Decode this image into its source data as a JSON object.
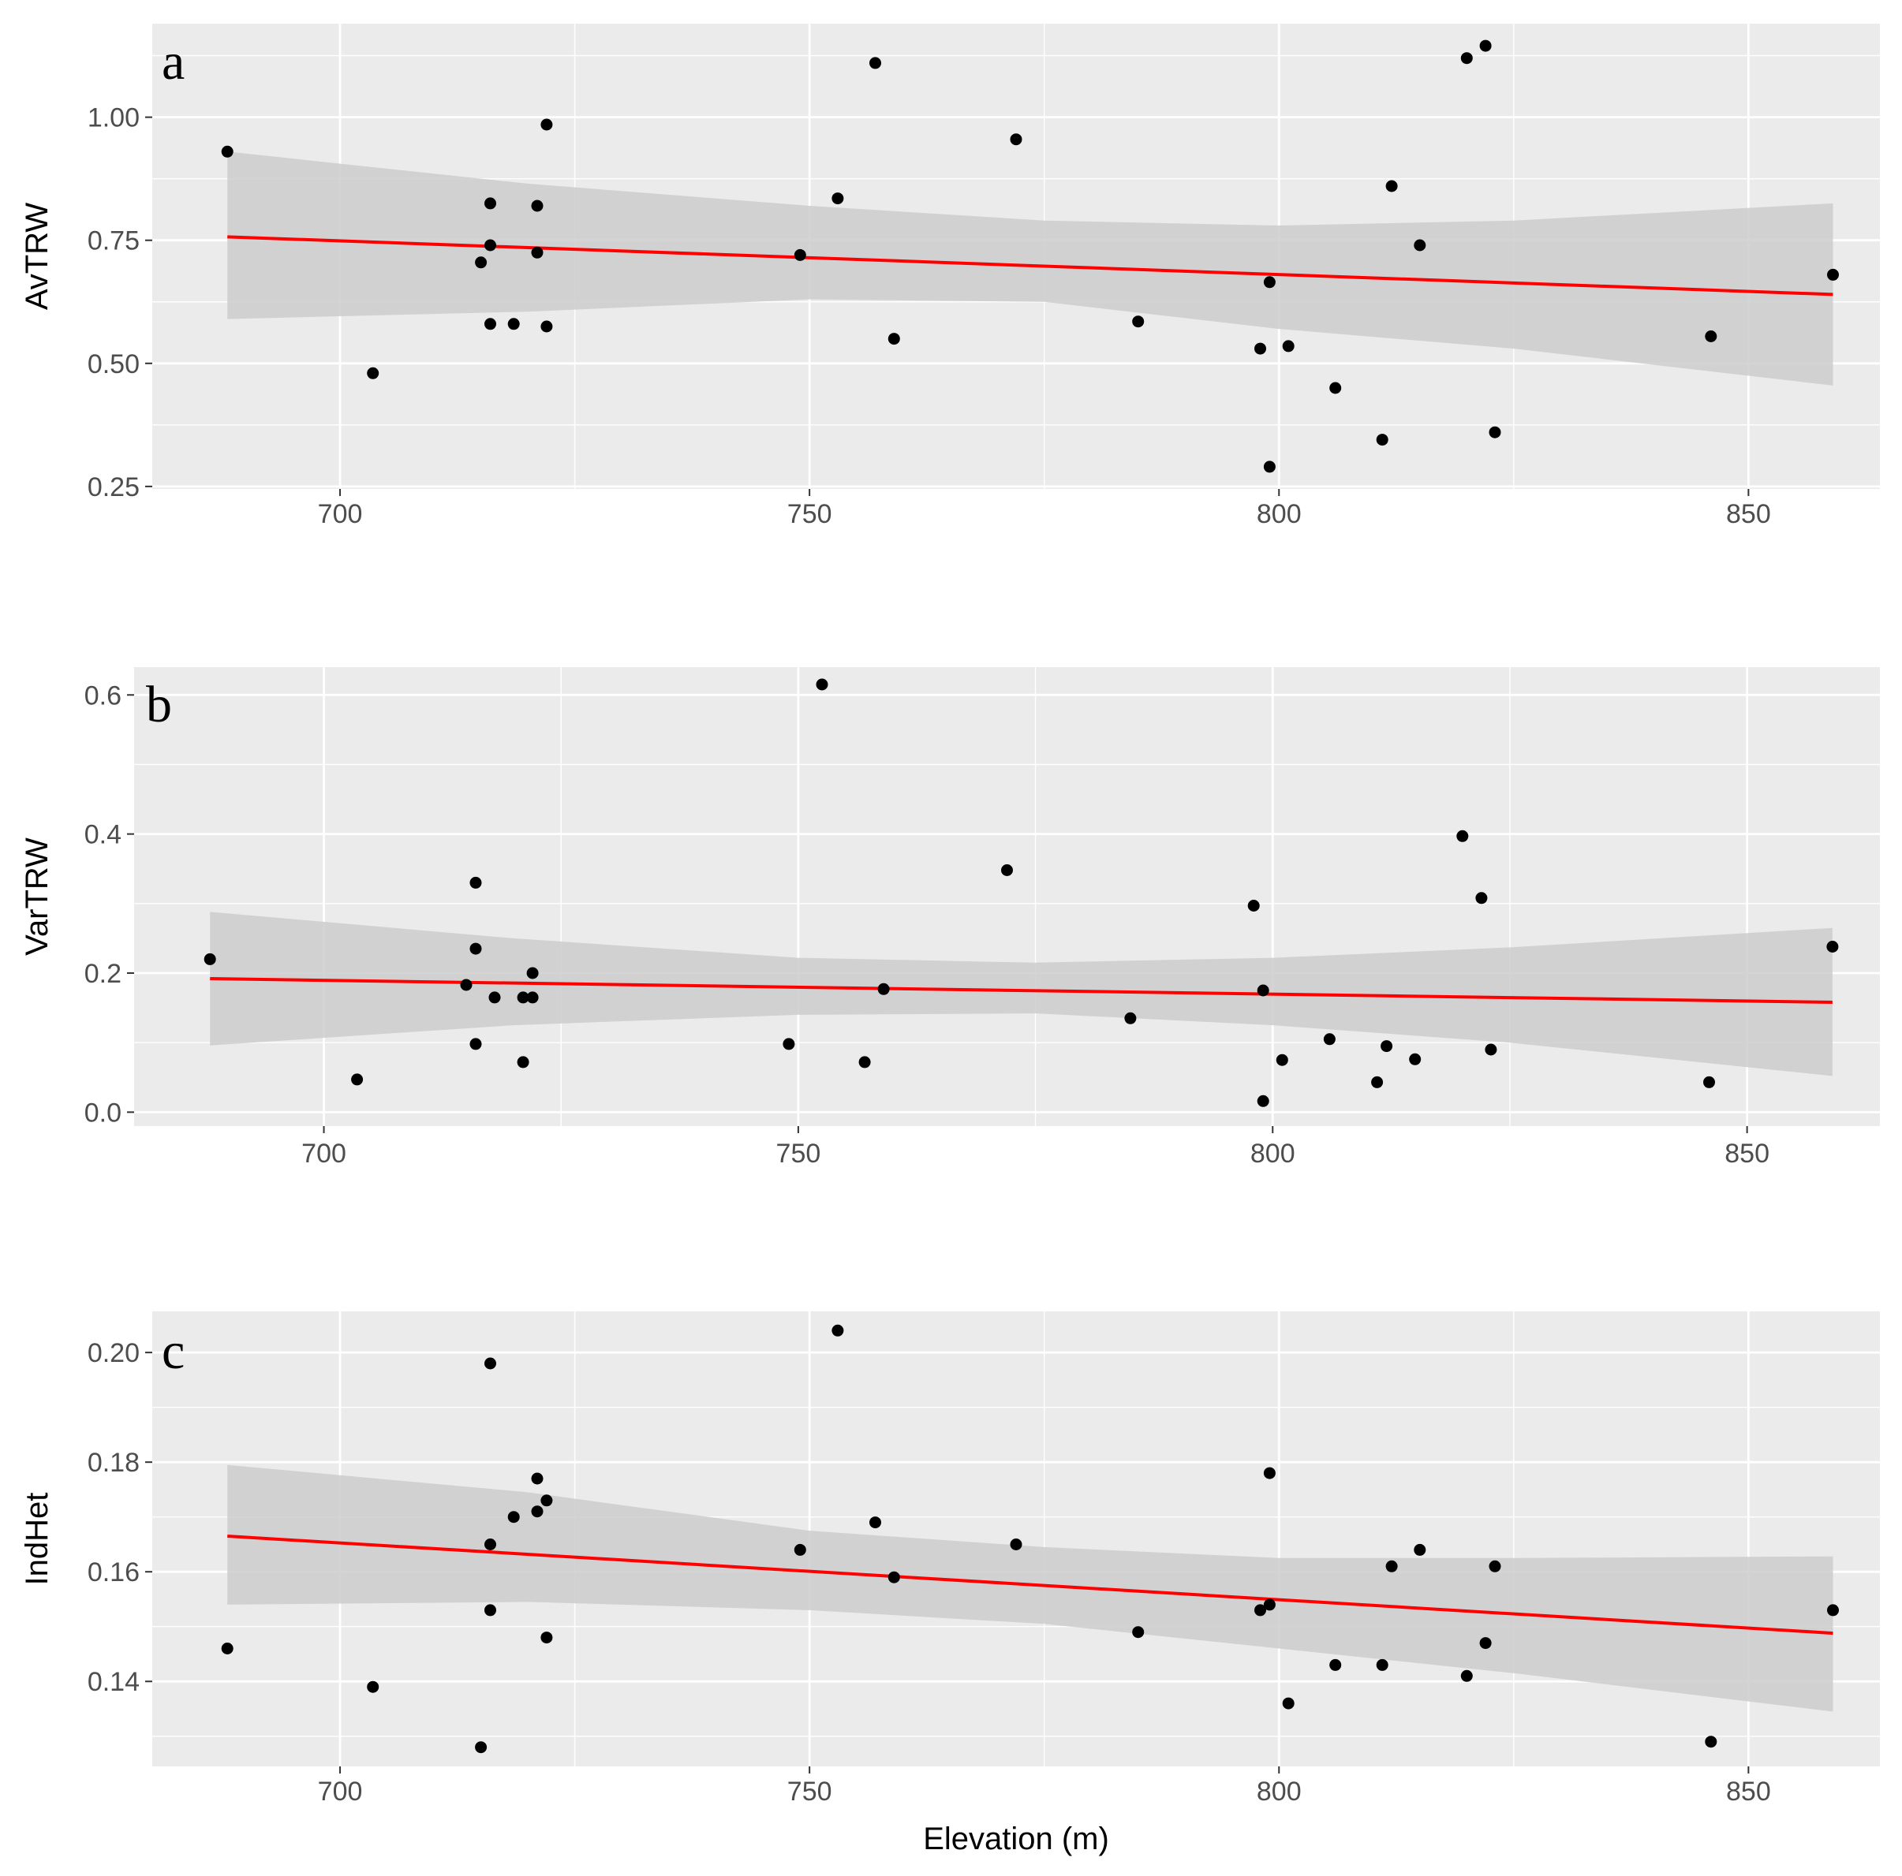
{
  "figure": {
    "background": "#ffffff",
    "panel_background": "#ebebeb",
    "grid_color": "#ffffff",
    "point_color": "#000000",
    "fit_color": "#ff0000",
    "band_color": "#cccccc"
  },
  "chart_data": [
    {
      "type": "scatter",
      "panel_label": "a",
      "ylabel": "AvTRW",
      "xlabel": "",
      "xlim": [
        680,
        864
      ],
      "ylim": [
        0.245,
        1.19
      ],
      "x_ticks": [
        700,
        750,
        800,
        850
      ],
      "x_tick_labels": [
        "700",
        "750",
        "800",
        "850"
      ],
      "y_ticks": [
        0.25,
        0.5,
        0.75,
        1.0
      ],
      "y_tick_labels": [
        "0.25",
        "0.50",
        "0.75",
        "1.00"
      ],
      "points": [
        [
          688,
          0.93
        ],
        [
          703.5,
          0.48
        ],
        [
          715,
          0.705
        ],
        [
          716,
          0.825
        ],
        [
          716,
          0.74
        ],
        [
          716,
          0.58
        ],
        [
          718.5,
          0.58
        ],
        [
          721,
          0.82
        ],
        [
          721,
          0.725
        ],
        [
          722,
          0.985
        ],
        [
          722,
          0.575
        ],
        [
          749,
          0.72
        ],
        [
          753,
          0.835
        ],
        [
          757,
          1.11
        ],
        [
          759,
          0.55
        ],
        [
          772,
          0.955
        ],
        [
          785,
          0.585
        ],
        [
          798,
          0.53
        ],
        [
          799,
          0.665
        ],
        [
          799,
          0.29
        ],
        [
          801,
          0.535
        ],
        [
          806,
          0.45
        ],
        [
          811,
          0.345
        ],
        [
          812,
          0.86
        ],
        [
          815,
          0.74
        ],
        [
          820,
          1.12
        ],
        [
          822,
          1.145
        ],
        [
          823,
          0.36
        ],
        [
          846,
          0.555
        ],
        [
          859,
          0.68
        ]
      ],
      "fit": {
        "x": [
          688,
          859
        ],
        "y": [
          0.757,
          0.64
        ]
      },
      "band": {
        "x": [
          688,
          720,
          750,
          775,
          800,
          825,
          859
        ],
        "lower": [
          0.59,
          0.605,
          0.63,
          0.625,
          0.57,
          0.53,
          0.455
        ],
        "upper": [
          0.93,
          0.865,
          0.82,
          0.79,
          0.78,
          0.79,
          0.825
        ]
      }
    },
    {
      "type": "scatter",
      "panel_label": "b",
      "ylabel": "VarTRW",
      "xlabel": "",
      "xlim": [
        680,
        864
      ],
      "ylim": [
        -0.02,
        0.64
      ],
      "x_ticks": [
        700,
        750,
        800,
        850
      ],
      "x_tick_labels": [
        "700",
        "750",
        "800",
        "850"
      ],
      "y_ticks": [
        0.0,
        0.2,
        0.4,
        0.6
      ],
      "y_tick_labels": [
        "0.0",
        "0.2",
        "0.4",
        "0.6"
      ],
      "points": [
        [
          688,
          0.22
        ],
        [
          703.5,
          0.047
        ],
        [
          715,
          0.183
        ],
        [
          716,
          0.33
        ],
        [
          716,
          0.235
        ],
        [
          716,
          0.098
        ],
        [
          718,
          0.165
        ],
        [
          721,
          0.165
        ],
        [
          721,
          0.072
        ],
        [
          722,
          0.165
        ],
        [
          722,
          0.2
        ],
        [
          749,
          0.098
        ],
        [
          752.5,
          0.615
        ],
        [
          757,
          0.072
        ],
        [
          759,
          0.177
        ],
        [
          772,
          0.348
        ],
        [
          785,
          0.135
        ],
        [
          798,
          0.297
        ],
        [
          799,
          0.175
        ],
        [
          799,
          0.016
        ],
        [
          801,
          0.075
        ],
        [
          806,
          0.105
        ],
        [
          811,
          0.043
        ],
        [
          812,
          0.095
        ],
        [
          815,
          0.076
        ],
        [
          820,
          0.397
        ],
        [
          822,
          0.308
        ],
        [
          823,
          0.09
        ],
        [
          846,
          0.043
        ],
        [
          859,
          0.238
        ]
      ],
      "fit": {
        "x": [
          688,
          859
        ],
        "y": [
          0.192,
          0.158
        ]
      },
      "band": {
        "x": [
          688,
          720,
          750,
          775,
          800,
          825,
          859
        ],
        "lower": [
          0.096,
          0.125,
          0.14,
          0.142,
          0.125,
          0.1,
          0.052
        ],
        "upper": [
          0.288,
          0.25,
          0.222,
          0.215,
          0.222,
          0.237,
          0.265
        ]
      }
    },
    {
      "type": "scatter",
      "panel_label": "c",
      "ylabel": "IndHet",
      "xlabel": "Elevation (m)",
      "xlim": [
        680,
        864
      ],
      "ylim": [
        0.1245,
        0.2075
      ],
      "x_ticks": [
        700,
        750,
        800,
        850
      ],
      "x_tick_labels": [
        "700",
        "750",
        "800",
        "850"
      ],
      "y_ticks": [
        0.14,
        0.16,
        0.18,
        0.2
      ],
      "y_tick_labels": [
        "0.14",
        "0.16",
        "0.18",
        "0.20"
      ],
      "points": [
        [
          688,
          0.146
        ],
        [
          703.5,
          0.139
        ],
        [
          715,
          0.128
        ],
        [
          716,
          0.198
        ],
        [
          716,
          0.165
        ],
        [
          716,
          0.153
        ],
        [
          718.5,
          0.17
        ],
        [
          721,
          0.177
        ],
        [
          721,
          0.171
        ],
        [
          722,
          0.173
        ],
        [
          722,
          0.148
        ],
        [
          749,
          0.164
        ],
        [
          753,
          0.204
        ],
        [
          757,
          0.169
        ],
        [
          759,
          0.159
        ],
        [
          772,
          0.165
        ],
        [
          785,
          0.149
        ],
        [
          798,
          0.153
        ],
        [
          799,
          0.154
        ],
        [
          799,
          0.178
        ],
        [
          801,
          0.136
        ],
        [
          806,
          0.143
        ],
        [
          811,
          0.143
        ],
        [
          812,
          0.161
        ],
        [
          815,
          0.164
        ],
        [
          820,
          0.141
        ],
        [
          822,
          0.147
        ],
        [
          823,
          0.161
        ],
        [
          846,
          0.129
        ],
        [
          859,
          0.153
        ]
      ],
      "fit": {
        "x": [
          688,
          859
        ],
        "y": [
          0.1665,
          0.1488
        ]
      },
      "band": {
        "x": [
          688,
          720,
          750,
          775,
          800,
          825,
          859
        ],
        "lower": [
          0.154,
          0.1545,
          0.153,
          0.1505,
          0.146,
          0.1415,
          0.1345
        ],
        "upper": [
          0.1795,
          0.1745,
          0.1675,
          0.1645,
          0.1625,
          0.1625,
          0.1628
        ]
      }
    }
  ]
}
